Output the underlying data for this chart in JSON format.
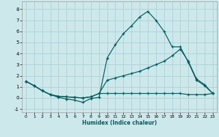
{
  "xlabel": "Humidex (Indice chaleur)",
  "bg_color": "#cce8ea",
  "grid_color": "#aacfd4",
  "line_color": "#006060",
  "xlim": [
    -0.5,
    23.5
  ],
  "ylim": [
    -1.3,
    8.7
  ],
  "xticks": [
    0,
    1,
    2,
    3,
    4,
    5,
    6,
    7,
    8,
    9,
    10,
    11,
    12,
    13,
    14,
    15,
    16,
    17,
    18,
    19,
    20,
    21,
    22,
    23
  ],
  "yticks": [
    -1,
    0,
    1,
    2,
    3,
    4,
    5,
    6,
    7,
    8
  ],
  "line1_x": [
    0,
    1,
    2,
    3,
    4,
    5,
    6,
    7,
    8,
    9,
    10,
    11,
    12,
    13,
    14,
    15,
    16,
    17,
    18,
    19,
    20,
    21,
    22,
    23
  ],
  "line1_y": [
    1.5,
    1.1,
    0.65,
    0.3,
    0.05,
    -0.1,
    -0.2,
    -0.4,
    -0.05,
    0.05,
    3.6,
    4.8,
    5.8,
    6.5,
    7.3,
    7.8,
    7.0,
    6.0,
    4.6,
    4.6,
    3.2,
    1.6,
    1.1,
    0.4
  ],
  "line2_x": [
    0,
    1,
    2,
    3,
    4,
    5,
    6,
    7,
    8,
    9,
    10,
    11,
    12,
    13,
    14,
    15,
    16,
    17,
    18,
    19,
    20,
    21,
    22,
    23
  ],
  "line2_y": [
    1.5,
    1.1,
    0.65,
    0.3,
    0.15,
    0.1,
    0.05,
    0.0,
    0.1,
    0.4,
    1.6,
    1.8,
    2.0,
    2.2,
    2.4,
    2.7,
    3.0,
    3.3,
    3.8,
    4.4,
    3.3,
    1.7,
    1.2,
    0.4
  ],
  "line3_x": [
    0,
    1,
    2,
    3,
    4,
    5,
    6,
    7,
    8,
    9,
    10,
    11,
    12,
    13,
    14,
    15,
    16,
    17,
    18,
    19,
    20,
    21,
    22,
    23
  ],
  "line3_y": [
    1.5,
    1.1,
    0.65,
    0.3,
    0.15,
    0.1,
    0.05,
    0.0,
    0.1,
    0.4,
    0.4,
    0.4,
    0.4,
    0.4,
    0.4,
    0.4,
    0.4,
    0.4,
    0.4,
    0.4,
    0.3,
    0.3,
    0.3,
    0.4
  ]
}
